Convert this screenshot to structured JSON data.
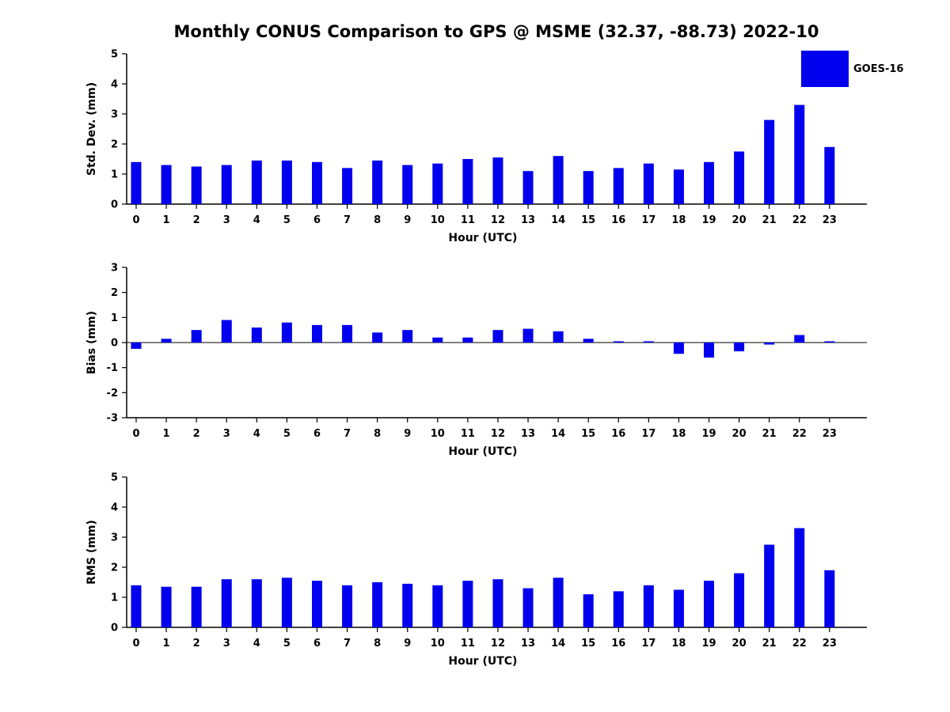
{
  "page": {
    "title": "Monthly CONUS Comparison to GPS @ MSME (32.37, -88.73) 2022-10"
  },
  "legend": {
    "label": "GOES-16",
    "color": "#0000EE"
  },
  "chart_data": [
    {
      "type": "bar",
      "title": "Monthly CONUS Comparison to GPS @ MSME (32.37, -88.73) 2022-10",
      "ylabel": "Std. Dev. (mm)",
      "xlabel": "Hour (UTC)",
      "ylim": [
        0,
        5
      ],
      "yticks": [
        0,
        1,
        2,
        3,
        4,
        5
      ],
      "grid": false,
      "legend_position": "top-right",
      "categories": [
        0,
        1,
        2,
        3,
        4,
        5,
        6,
        7,
        8,
        9,
        10,
        11,
        12,
        13,
        14,
        15,
        16,
        17,
        18,
        19,
        20,
        21,
        22,
        23
      ],
      "series": [
        {
          "name": "GOES-16",
          "color": "#0000EE",
          "values": [
            1.4,
            1.3,
            1.25,
            1.3,
            1.45,
            1.45,
            1.4,
            1.2,
            1.45,
            1.3,
            1.35,
            1.5,
            1.55,
            1.1,
            1.6,
            1.1,
            1.2,
            1.35,
            1.15,
            1.4,
            1.75,
            2.8,
            3.3,
            1.9
          ]
        }
      ]
    },
    {
      "type": "bar",
      "title": "",
      "ylabel": "Bias (mm)",
      "xlabel": "Hour (UTC)",
      "ylim": [
        -3,
        3
      ],
      "yticks": [
        -3,
        -2,
        -1,
        0,
        1,
        2,
        3
      ],
      "grid": false,
      "categories": [
        0,
        1,
        2,
        3,
        4,
        5,
        6,
        7,
        8,
        9,
        10,
        11,
        12,
        13,
        14,
        15,
        16,
        17,
        18,
        19,
        20,
        21,
        22,
        23
      ],
      "series": [
        {
          "name": "GOES-16",
          "color": "#0000EE",
          "values": [
            -0.25,
            0.15,
            0.5,
            0.9,
            0.6,
            0.8,
            0.7,
            0.7,
            0.4,
            0.5,
            0.2,
            0.2,
            0.5,
            0.55,
            0.45,
            0.15,
            0.05,
            0.05,
            -0.45,
            -0.6,
            -0.35,
            -0.08,
            0.3,
            0.05
          ]
        }
      ]
    },
    {
      "type": "bar",
      "title": "",
      "ylabel": "RMS (mm)",
      "xlabel": "Hour (UTC)",
      "ylim": [
        0,
        5
      ],
      "yticks": [
        0,
        1,
        2,
        3,
        4,
        5
      ],
      "grid": false,
      "categories": [
        0,
        1,
        2,
        3,
        4,
        5,
        6,
        7,
        8,
        9,
        10,
        11,
        12,
        13,
        14,
        15,
        16,
        17,
        18,
        19,
        20,
        21,
        22,
        23
      ],
      "series": [
        {
          "name": "GOES-16",
          "color": "#0000EE",
          "values": [
            1.4,
            1.35,
            1.35,
            1.6,
            1.6,
            1.65,
            1.55,
            1.4,
            1.5,
            1.45,
            1.4,
            1.55,
            1.6,
            1.3,
            1.65,
            1.1,
            1.2,
            1.4,
            1.25,
            1.55,
            1.8,
            2.75,
            3.3,
            1.9
          ]
        }
      ]
    }
  ]
}
